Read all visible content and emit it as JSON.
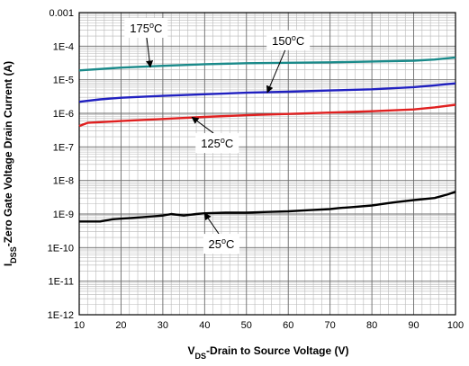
{
  "chart_data": {
    "type": "line",
    "xlabel": {
      "main": "V",
      "sub": "DS",
      "rest": "-Drain to Source Voltage (V)"
    },
    "ylabel": {
      "main": "I",
      "sub": "DSS",
      "rest": "-Zero Gate Voltage Drain Current (A)"
    },
    "xlim": [
      10,
      100
    ],
    "ylim": [
      1e-12,
      0.001
    ],
    "yscale": "log",
    "grid": true,
    "x_ticks": [
      {
        "value": 10,
        "label": "10"
      },
      {
        "value": 20,
        "label": "20"
      },
      {
        "value": 30,
        "label": "30"
      },
      {
        "value": 40,
        "label": "40"
      },
      {
        "value": 50,
        "label": "50"
      },
      {
        "value": 60,
        "label": "60"
      },
      {
        "value": 70,
        "label": "70"
      },
      {
        "value": 80,
        "label": "80"
      },
      {
        "value": 90,
        "label": "90"
      },
      {
        "value": 100,
        "label": "100"
      }
    ],
    "y_ticks": [
      {
        "value": 1e-12,
        "label": "1E-12"
      },
      {
        "value": 1e-11,
        "label": "1E-11"
      },
      {
        "value": 1e-10,
        "label": "1E-10"
      },
      {
        "value": 1e-09,
        "label": "1E-9"
      },
      {
        "value": 1e-08,
        "label": "1E-8"
      },
      {
        "value": 1e-07,
        "label": "1E-7"
      },
      {
        "value": 1e-06,
        "label": "1E-6"
      },
      {
        "value": 1e-05,
        "label": "1E-5"
      },
      {
        "value": 0.0001,
        "label": "1E-4"
      },
      {
        "value": 0.001,
        "label": "0.001"
      }
    ],
    "series": [
      {
        "color": "#1a8a8a",
        "x": [
          10,
          20,
          30,
          40,
          50,
          60,
          70,
          80,
          90,
          95,
          100
        ],
        "y": [
          1.9e-05,
          2.3e-05,
          2.6e-05,
          2.9e-05,
          3.1e-05,
          3.2e-05,
          3.3e-05,
          3.5e-05,
          3.7e-05,
          4e-05,
          4.6e-05
        ]
      },
      {
        "color": "#2020c0",
        "x": [
          10,
          15,
          20,
          30,
          40,
          50,
          60,
          70,
          80,
          90,
          95,
          100
        ],
        "y": [
          2.2e-06,
          2.6e-06,
          2.9e-06,
          3.3e-06,
          3.7e-06,
          4.1e-06,
          4.4e-06,
          4.8e-06,
          5.2e-06,
          6e-06,
          6.8e-06,
          7.8e-06
        ]
      },
      {
        "color": "#e02020",
        "x": [
          10,
          12,
          20,
          30,
          40,
          50,
          60,
          70,
          80,
          90,
          95,
          100
        ],
        "y": [
          4.2e-07,
          5.2e-07,
          5.9e-07,
          6.8e-07,
          7.8e-07,
          8.8e-07,
          9.6e-07,
          1.05e-06,
          1.15e-06,
          1.3e-06,
          1.5e-06,
          1.8e-06
        ]
      },
      {
        "color": "#000000",
        "x": [
          10,
          15,
          18,
          25,
          30,
          32,
          35,
          38,
          40,
          45,
          50,
          55,
          60,
          65,
          70,
          72,
          75,
          80,
          85,
          90,
          95,
          98,
          100
        ],
        "y": [
          6e-10,
          6e-10,
          7e-10,
          8e-10,
          9e-10,
          1e-09,
          9e-10,
          1e-09,
          1.05e-09,
          1.1e-09,
          1.1e-09,
          1.15e-09,
          1.2e-09,
          1.3e-09,
          1.4e-09,
          1.5e-09,
          1.6e-09,
          1.8e-09,
          2.2e-09,
          2.6e-09,
          3e-09,
          3.8e-09,
          4.6e-09
        ]
      }
    ],
    "annotations": [
      {
        "num": "175",
        "unit": "C",
        "sup": "o",
        "box_x": 26,
        "box_y": 0.00035,
        "arrow_to_x": 27,
        "arrow_to_y": 2.4e-05
      },
      {
        "num": "150",
        "unit": "C",
        "sup": "o",
        "box_x": 60,
        "box_y": 0.00015,
        "arrow_to_x": 55,
        "arrow_to_y": 4.2e-06
      },
      {
        "num": "125",
        "unit": "C",
        "sup": "o",
        "box_x": 43,
        "box_y": 1.3e-07,
        "arrow_to_x": 37,
        "arrow_to_y": 7.6e-07
      },
      {
        "num": "25",
        "unit": "C",
        "sup": "o",
        "box_x": 44,
        "box_y": 1.3e-10,
        "arrow_to_x": 40,
        "arrow_to_y": 1.05e-09
      }
    ]
  }
}
